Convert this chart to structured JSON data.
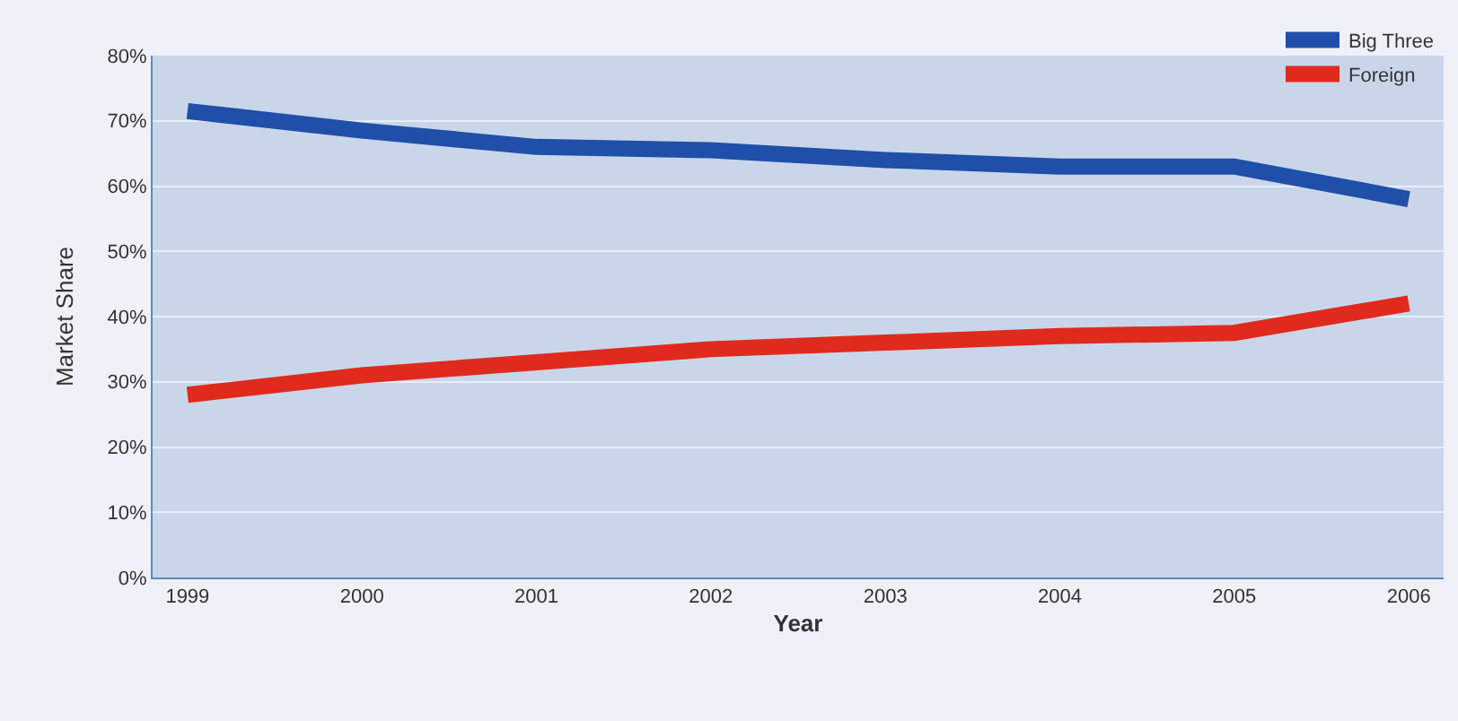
{
  "chart_data": {
    "type": "line",
    "xlabel": "Year",
    "ylabel": "Market Share",
    "x": [
      1999,
      2000,
      2001,
      2002,
      2003,
      2004,
      2005,
      2006
    ],
    "series": [
      {
        "name": "Big Three",
        "color": "#1f4fa8",
        "values": [
          71.5,
          68.5,
          66,
          65.5,
          64,
          63,
          63,
          58
        ]
      },
      {
        "name": "Foreign",
        "color": "#e02a1c",
        "values": [
          28,
          31,
          33,
          35,
          36,
          37,
          37.5,
          42
        ]
      }
    ],
    "xlim": [
      1998.8,
      2006.2
    ],
    "xticks": [
      1999,
      2000,
      2001,
      2002,
      2003,
      2004,
      2005,
      2006
    ],
    "ylim": [
      0,
      80
    ],
    "yticks": [
      {
        "value": 0,
        "label": "0%"
      },
      {
        "value": 10,
        "label": "10%"
      },
      {
        "value": 20,
        "label": "20%"
      },
      {
        "value": 30,
        "label": "30%"
      },
      {
        "value": 40,
        "label": "40%"
      },
      {
        "value": 50,
        "label": "50%"
      },
      {
        "value": 60,
        "label": "60%"
      },
      {
        "value": 70,
        "label": "70%"
      },
      {
        "value": 80,
        "label": "80%"
      }
    ],
    "grid": "y",
    "legend": "top right",
    "marker": "none",
    "line_style": "solid"
  }
}
